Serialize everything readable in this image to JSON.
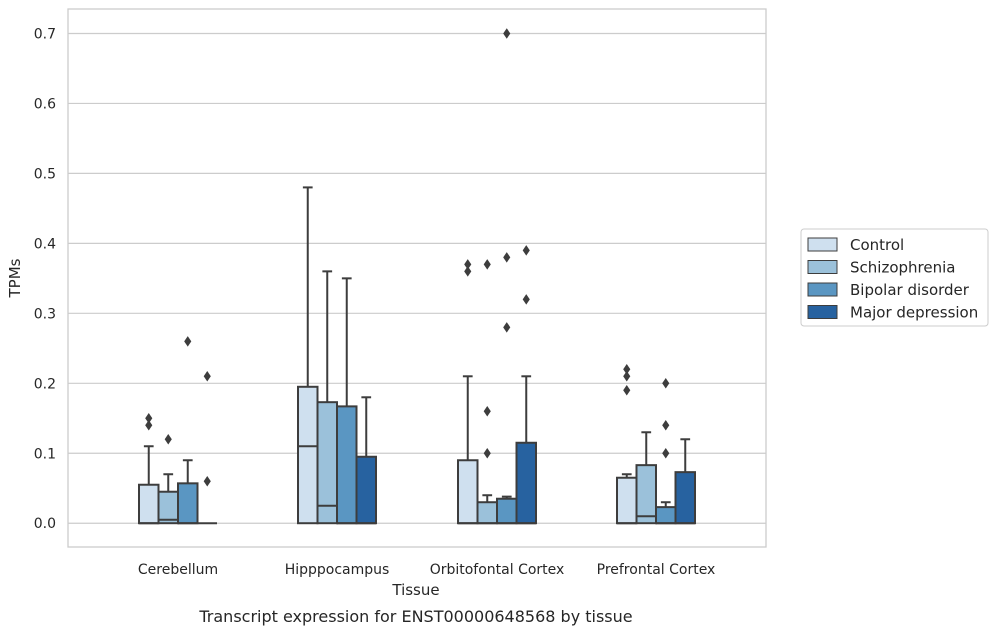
{
  "caption": "Transcript expression for ENST00000648568 by tissue",
  "chart_data": {
    "type": "box",
    "title": "",
    "xlabel": "Tissue",
    "ylabel": "TPMs",
    "ylim": [
      -0.034,
      0.735
    ],
    "yticks": [
      0.0,
      0.1,
      0.2,
      0.3,
      0.4,
      0.5,
      0.6,
      0.7
    ],
    "ytick_labels": [
      "0.0",
      "0.1",
      "0.2",
      "0.3",
      "0.4",
      "0.5",
      "0.6",
      "0.7"
    ],
    "grid": "horizontal",
    "legend_position": "right",
    "categories": [
      "Cerebellum",
      "Hipppocampus",
      "Orbitofontal Cortex",
      "Prefrontal Cortex"
    ],
    "series": [
      {
        "name": "Control",
        "color": "#cfe0ef",
        "boxes": [
          {
            "q1": 0.0,
            "median": 0.0,
            "q3": 0.055,
            "whisker_low": 0.0,
            "whisker_high": 0.11,
            "outliers": [
              0.14,
              0.15
            ]
          },
          {
            "q1": 0.0,
            "median": 0.11,
            "q3": 0.195,
            "whisker_low": 0.0,
            "whisker_high": 0.48,
            "outliers": []
          },
          {
            "q1": 0.0,
            "median": 0.0,
            "q3": 0.09,
            "whisker_low": 0.0,
            "whisker_high": 0.21,
            "outliers": [
              0.36,
              0.37
            ]
          },
          {
            "q1": 0.0,
            "median": 0.0,
            "q3": 0.065,
            "whisker_low": 0.0,
            "whisker_high": 0.07,
            "outliers": [
              0.19,
              0.21,
              0.22
            ]
          }
        ]
      },
      {
        "name": "Schizophrenia",
        "color": "#9bc1da",
        "boxes": [
          {
            "q1": 0.0,
            "median": 0.005,
            "q3": 0.045,
            "whisker_low": 0.0,
            "whisker_high": 0.07,
            "outliers": [
              0.12
            ]
          },
          {
            "q1": 0.0,
            "median": 0.025,
            "q3": 0.173,
            "whisker_low": 0.0,
            "whisker_high": 0.36,
            "outliers": []
          },
          {
            "q1": 0.0,
            "median": 0.0,
            "q3": 0.03,
            "whisker_low": 0.0,
            "whisker_high": 0.04,
            "outliers": [
              0.1,
              0.16,
              0.37
            ]
          },
          {
            "q1": 0.0,
            "median": 0.01,
            "q3": 0.083,
            "whisker_low": 0.0,
            "whisker_high": 0.13,
            "outliers": []
          }
        ]
      },
      {
        "name": "Bipolar disorder",
        "color": "#5a96c2",
        "boxes": [
          {
            "q1": 0.0,
            "median": 0.0,
            "q3": 0.057,
            "whisker_low": 0.0,
            "whisker_high": 0.09,
            "outliers": [
              0.26
            ]
          },
          {
            "q1": 0.0,
            "median": 0.0,
            "q3": 0.167,
            "whisker_low": 0.0,
            "whisker_high": 0.35,
            "outliers": []
          },
          {
            "q1": 0.0,
            "median": 0.0,
            "q3": 0.035,
            "whisker_low": 0.0,
            "whisker_high": 0.038,
            "outliers": [
              0.28,
              0.38,
              0.7
            ]
          },
          {
            "q1": 0.0,
            "median": 0.0,
            "q3": 0.023,
            "whisker_low": 0.0,
            "whisker_high": 0.03,
            "outliers": [
              0.1,
              0.14,
              0.2
            ]
          }
        ]
      },
      {
        "name": "Major depression",
        "color": "#2762a0",
        "boxes": [
          {
            "q1": 0.0,
            "median": 0.0,
            "q3": 0.0,
            "whisker_low": 0.0,
            "whisker_high": 0.0,
            "outliers": [
              0.06,
              0.21
            ]
          },
          {
            "q1": 0.0,
            "median": 0.0,
            "q3": 0.095,
            "whisker_low": 0.0,
            "whisker_high": 0.18,
            "outliers": []
          },
          {
            "q1": 0.0,
            "median": 0.0,
            "q3": 0.115,
            "whisker_low": 0.0,
            "whisker_high": 0.21,
            "outliers": [
              0.32,
              0.39
            ]
          },
          {
            "q1": 0.0,
            "median": 0.0,
            "q3": 0.073,
            "whisker_low": 0.0,
            "whisker_high": 0.12,
            "outliers": []
          }
        ]
      }
    ]
  }
}
